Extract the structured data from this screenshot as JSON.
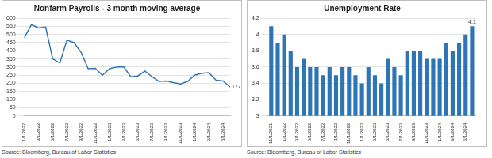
{
  "chart_data": [
    {
      "type": "line",
      "title": "Nonfarm Payrolls - 3 month moving average",
      "source": "Source: Bloomberg, Bureau of Labor Statistics",
      "categories": [
        "1/1/2022",
        null,
        "3/1/2022",
        null,
        "5/1/2022",
        null,
        "7/1/2022",
        null,
        "9/1/2022",
        null,
        "11/1/2022",
        null,
        "1/1/2023",
        null,
        "3/1/2023",
        null,
        "5/1/2023",
        null,
        "7/1/2023",
        null,
        "9/1/2023",
        null,
        "11/1/2023",
        null,
        "1/1/2024",
        null,
        "3/1/2024",
        null,
        "5/1/2024",
        null
      ],
      "values": [
        480,
        560,
        540,
        545,
        350,
        325,
        465,
        450,
        390,
        290,
        292,
        250,
        290,
        300,
        302,
        240,
        245,
        275,
        240,
        212,
        215,
        205,
        197,
        212,
        250,
        262,
        265,
        220,
        215,
        177
      ],
      "color": "#2e75b6",
      "ylim": [
        0,
        600
      ],
      "yticks": [
        0,
        50,
        100,
        150,
        200,
        250,
        300,
        350,
        400,
        450,
        500,
        550,
        600
      ],
      "grid": true,
      "annotations": [
        "177"
      ]
    },
    {
      "type": "bar",
      "title": "Unemployment Rate",
      "source": "Source: Bloomberg, Bureau of Labor Statistics",
      "categories": [
        "11/1/2021",
        null,
        "1/1/2022",
        null,
        "3/1/2022",
        null,
        "5/1/2022",
        null,
        "7/1/2022",
        null,
        "9/1/2022",
        null,
        "11/1/2022",
        null,
        "1/1/2023",
        null,
        "3/1/2023",
        null,
        "5/1/2023",
        null,
        "7/1/2023",
        null,
        "9/1/2023",
        null,
        "11/1/2023",
        null,
        "1/1/2024",
        null,
        "3/1/2024",
        null,
        "5/1/2024",
        null
      ],
      "values": [
        4.1,
        3.9,
        4.0,
        3.8,
        3.6,
        3.7,
        3.6,
        3.6,
        3.5,
        3.6,
        3.5,
        3.6,
        3.6,
        3.5,
        3.4,
        3.6,
        3.5,
        3.4,
        3.7,
        3.6,
        3.5,
        3.8,
        3.8,
        3.8,
        3.7,
        3.7,
        3.7,
        3.9,
        3.8,
        3.9,
        4.0,
        4.1
      ],
      "color": "#2e75b6",
      "ylim": [
        3,
        4.2
      ],
      "yticks": [
        3,
        3.2,
        3.4,
        3.6,
        3.8,
        4,
        4.2
      ],
      "grid": true,
      "annotations": [
        "4.1"
      ]
    }
  ]
}
